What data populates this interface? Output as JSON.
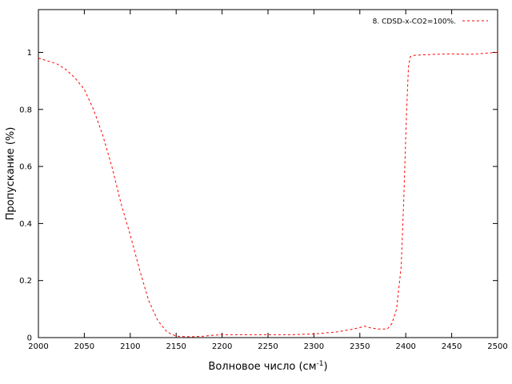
{
  "chart_data": {
    "type": "line",
    "xlabel": "Волновое число (см",
    "xlabel_sup": "-1",
    "xlabel_close": ")",
    "ylabel": "Пропускание (%)",
    "xlim": [
      2000,
      2500
    ],
    "ylim": [
      0,
      1.15
    ],
    "x_ticks": [
      2000,
      2050,
      2100,
      2150,
      2200,
      2250,
      2300,
      2350,
      2400,
      2450,
      2500
    ],
    "y_ticks": [
      0,
      0.2,
      0.4,
      0.6,
      0.8,
      1
    ],
    "y_tick_labels": [
      "0",
      "0.2",
      "0.4",
      "0.6",
      "0.8",
      "1"
    ],
    "grid": false,
    "legend_position": "top-right",
    "series": [
      {
        "name": "8. CDSD-x-CO2=100%.",
        "color": "#ff0000",
        "style": "dashed",
        "x": [
          2000,
          2010,
          2020,
          2030,
          2040,
          2050,
          2060,
          2070,
          2080,
          2090,
          2100,
          2110,
          2120,
          2130,
          2140,
          2145,
          2150,
          2160,
          2170,
          2180,
          2190,
          2200,
          2225,
          2250,
          2275,
          2300,
          2325,
          2340,
          2350,
          2355,
          2360,
          2370,
          2380,
          2385,
          2390,
          2395,
          2398,
          2401,
          2403,
          2405,
          2410,
          2430,
          2450,
          2470,
          2490,
          2500
        ],
        "y": [
          0.98,
          0.97,
          0.96,
          0.94,
          0.91,
          0.87,
          0.8,
          0.71,
          0.6,
          0.47,
          0.36,
          0.24,
          0.13,
          0.06,
          0.02,
          0.012,
          0.005,
          0.003,
          0.003,
          0.005,
          0.008,
          0.01,
          0.01,
          0.01,
          0.01,
          0.013,
          0.02,
          0.028,
          0.035,
          0.04,
          0.035,
          0.03,
          0.03,
          0.05,
          0.1,
          0.25,
          0.5,
          0.8,
          0.95,
          0.985,
          0.99,
          0.993,
          0.995,
          0.993,
          0.998,
          1.0
        ]
      }
    ]
  }
}
